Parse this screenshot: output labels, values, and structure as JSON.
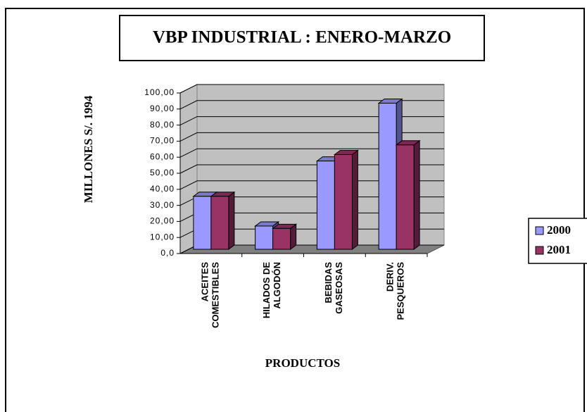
{
  "chart_data": {
    "type": "bar3d",
    "title": "VBP INDUSTRIAL : ENERO-MARZO",
    "x_label": "PRODUCTOS",
    "y_label": "MILLONES S/. 1994",
    "categories": [
      "ACEITES\nCOMESTIBLES",
      "HILADOS DE\nALGODÓN",
      "BEBIDAS\nGASEOSAS",
      "DERIV.\nPESQUEROS"
    ],
    "series": [
      {
        "name": "2000",
        "color": "#9999ff",
        "values": [
          33,
          14.5,
          55,
          91
        ]
      },
      {
        "name": "2001",
        "color": "#993366",
        "values": [
          33,
          13,
          59,
          65
        ]
      }
    ],
    "ylim": [
      0,
      100
    ],
    "yticks": [
      {
        "value": 0,
        "label": "0,0"
      },
      {
        "value": 10,
        "label": "10,00"
      },
      {
        "value": 20,
        "label": "20,00"
      },
      {
        "value": 30,
        "label": "30,00"
      },
      {
        "value": 40,
        "label": "40,00"
      },
      {
        "value": 50,
        "label": "50,00"
      },
      {
        "value": 60,
        "label": "60,00"
      },
      {
        "value": 70,
        "label": "70,00"
      },
      {
        "value": 80,
        "label": "80,00"
      },
      {
        "value": 90,
        "label": "90,00"
      },
      {
        "value": 100,
        "label": "100,00"
      }
    ],
    "grid": true,
    "legend": "right"
  }
}
